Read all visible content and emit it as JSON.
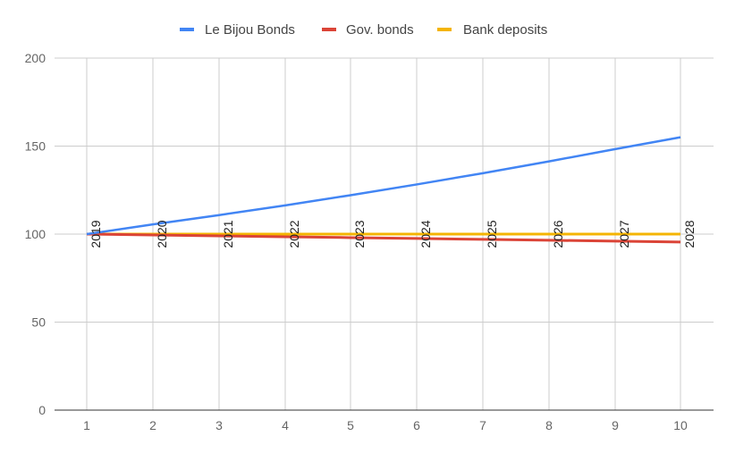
{
  "chart_data": {
    "type": "line",
    "x": [
      1,
      2,
      3,
      4,
      5,
      6,
      7,
      8,
      9,
      10
    ],
    "year_labels": [
      "2019",
      "2020",
      "2021",
      "2022",
      "2023",
      "2024",
      "2025",
      "2026",
      "2027",
      "2028"
    ],
    "series": [
      {
        "name": "Le Bijou Bonds",
        "color": "#4285f4",
        "values": [
          100,
          105.5,
          110.8,
          116.3,
          122.1,
          128.2,
          134.6,
          141.3,
          148.3,
          155
        ]
      },
      {
        "name": "Gov. bonds",
        "color": "#db4437",
        "values": [
          100,
          99.5,
          99.0,
          98.5,
          98.0,
          97.5,
          97.0,
          96.5,
          96.0,
          95.5
        ]
      },
      {
        "name": "Bank deposits",
        "color": "#f4b400",
        "values": [
          100,
          100,
          100,
          100,
          100,
          100,
          100,
          100,
          100,
          100
        ]
      }
    ],
    "yticks": [
      0,
      50,
      100,
      150,
      200
    ],
    "ylim": [
      0,
      200
    ],
    "xlim": [
      1,
      10
    ],
    "grid": true,
    "legend_position": "top"
  }
}
